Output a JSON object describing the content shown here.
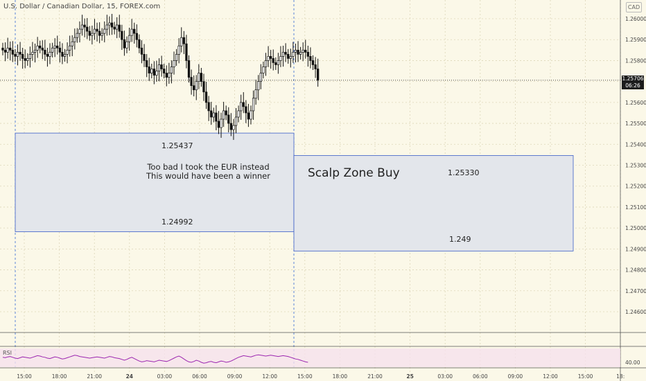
{
  "header": {
    "symbol_title": "U.S. Dollar / Canadian Dollar, 15, FOREX.com",
    "currency": "CAD"
  },
  "price_tag": {
    "price": "1.25706",
    "countdown": "06:26"
  },
  "zones": {
    "left": {
      "top_price": "1.25437",
      "bottom_price": "1.24992",
      "note_line1": "Too bad I took the EUR instead",
      "note_line2": "This would have been a winner"
    },
    "right": {
      "title": "Scalp Zone Buy",
      "top_price": "1.25330",
      "bottom_price": "1.249"
    }
  },
  "rsi": {
    "label": "RSI",
    "axis_label": "40.00",
    "value": 40.0
  },
  "colors": {
    "up_candle": "#ffffff",
    "down_candle": "#111111",
    "zone_fill": "#e3e6eb",
    "zone_border": "#3b5ec7",
    "rsi_line": "#9c27b0",
    "rsi_band": "#f6e1ec",
    "grid": "#ddd6b8",
    "session_line": "#5b83d9"
  },
  "chart_data": {
    "type": "candlestick",
    "title": "U.S. Dollar / Canadian Dollar, 15, FOREX.com",
    "y_ticks": [
      "1.26000",
      "1.25900",
      "1.25800",
      "1.25700",
      "1.25600",
      "1.25500",
      "1.25400",
      "1.25300",
      "1.25200",
      "1.25100",
      "1.25000",
      "1.24900",
      "1.24800",
      "1.24700",
      "1.24600"
    ],
    "ylim": [
      1.2455,
      1.2612
    ],
    "x_ticks": [
      "15:00",
      "18:00",
      "21:00",
      "24",
      "03:00",
      "06:00",
      "09:00",
      "12:00",
      "15:00",
      "18:00",
      "21:00",
      "25",
      "03:00",
      "06:00",
      "09:00",
      "12:00",
      "15:00",
      "18:"
    ],
    "last_price": 1.25706,
    "closes": [
      1.2585,
      1.2584,
      1.2586,
      1.2585,
      1.2583,
      1.2582,
      1.2584,
      1.2583,
      1.2581,
      1.258,
      1.2581,
      1.2583,
      1.2584,
      1.2585,
      1.2587,
      1.2586,
      1.2585,
      1.2583,
      1.2582,
      1.2584,
      1.2586,
      1.2587,
      1.2586,
      1.2584,
      1.2582,
      1.2583,
      1.2585,
      1.2587,
      1.2589,
      1.2591,
      1.2593,
      1.2595,
      1.2597,
      1.2596,
      1.2594,
      1.2592,
      1.2593,
      1.2595,
      1.2594,
      1.2592,
      1.2593,
      1.2595,
      1.2597,
      1.2598,
      1.2596,
      1.2595,
      1.2597,
      1.2594,
      1.259,
      1.2586,
      1.2589,
      1.2592,
      1.2595,
      1.2593,
      1.259,
      1.2586,
      1.2583,
      1.258,
      1.2577,
      1.2574,
      1.2576,
      1.2573,
      1.2575,
      1.2578,
      1.2576,
      1.2574,
      1.2572,
      1.2574,
      1.2577,
      1.258,
      1.2583,
      1.2587,
      1.2591,
      1.2588,
      1.258,
      1.2572,
      1.2568,
      1.2566,
      1.257,
      1.2574,
      1.257,
      1.2565,
      1.256,
      1.2556,
      1.2553,
      1.2555,
      1.2551,
      1.2548,
      1.2552,
      1.2556,
      1.2554,
      1.255,
      1.2547,
      1.2549,
      1.2553,
      1.2556,
      1.256,
      1.2558,
      1.2555,
      1.2552,
      1.2556,
      1.2562,
      1.2566,
      1.257,
      1.2574,
      1.2577,
      1.258,
      1.2582,
      1.2581,
      1.2579,
      1.2578,
      1.258,
      1.2582,
      1.2584,
      1.2583,
      1.2581,
      1.2582,
      1.2584,
      1.2585,
      1.2583,
      1.2584,
      1.2585,
      1.2584,
      1.2582,
      1.258,
      1.2578,
      1.2576,
      1.25706
    ],
    "rsi": [
      52,
      51,
      53,
      54,
      52,
      50,
      49,
      51,
      53,
      52,
      51,
      50,
      52,
      54,
      56,
      55,
      53,
      52,
      50,
      49,
      51,
      53,
      52,
      50,
      48,
      49,
      51,
      53,
      55,
      57,
      56,
      54,
      53,
      52,
      51,
      50,
      51,
      52,
      53,
      52,
      51,
      50,
      52,
      54,
      53,
      51,
      50,
      49,
      47,
      45,
      47,
      50,
      52,
      49,
      46,
      43,
      41,
      42,
      44,
      43,
      42,
      41,
      43,
      45,
      44,
      43,
      42,
      44,
      47,
      50,
      53,
      55,
      52,
      48,
      44,
      41,
      40,
      42,
      45,
      43,
      40,
      38,
      39,
      41,
      42,
      40,
      39,
      41,
      43,
      42,
      40,
      41,
      43,
      46,
      49,
      52,
      54,
      56,
      55,
      54,
      53,
      55,
      57,
      58,
      57,
      56,
      55,
      56,
      57,
      56,
      55,
      54,
      55,
      56,
      55,
      54,
      52,
      50,
      48,
      47,
      45,
      43,
      41,
      40
    ]
  }
}
